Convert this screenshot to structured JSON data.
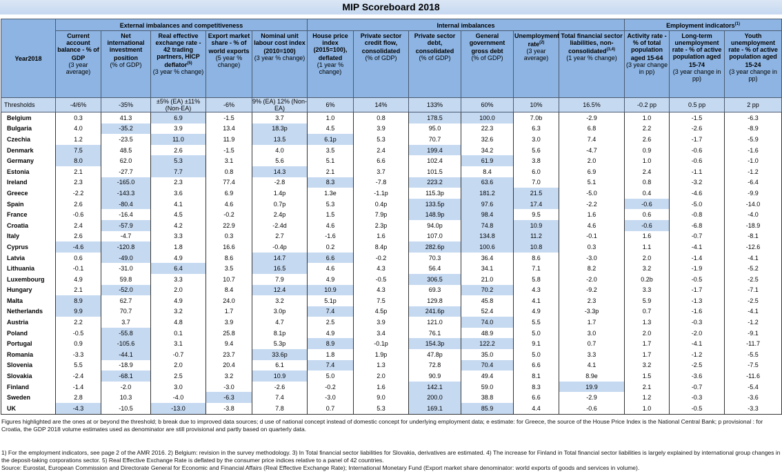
{
  "title": "MIP Scoreboard 2018",
  "year_label": "Year2018",
  "groups": [
    {
      "label": "External imbalances and competitiveness",
      "sup": ""
    },
    {
      "label": "Internal imbalances",
      "sup": ""
    },
    {
      "label": "Employment indicators",
      "sup": "(1)"
    }
  ],
  "columns": [
    {
      "title": "Current account balance - % of GDP",
      "sup": "",
      "sub": "(3 year average)"
    },
    {
      "title": "Net international investment position",
      "sup": "",
      "sub": "(% of GDP)"
    },
    {
      "title": "Real effective exchange rate - 42 trading partners, HICP deflator",
      "sup": "(5)",
      "sub": "(3 year % change)"
    },
    {
      "title": "Export market share - % of world exports",
      "sup": "",
      "sub": "(5 year % change)"
    },
    {
      "title": "Nominal unit labour cost index (2010=100)",
      "sup": "",
      "sub": "(3 year % change)"
    },
    {
      "title": "House price index (2015=100), deflated",
      "sup": "",
      "sub": "(1 year % change)"
    },
    {
      "title": "Private sector credit flow, consolidated",
      "sup": "",
      "sub": "(% of GDP)"
    },
    {
      "title": "Private sector debt, consolidated",
      "sup": "",
      "sub": "(% of GDP)"
    },
    {
      "title": "General government gross debt",
      "sup": "",
      "sub": "(% of GDP)"
    },
    {
      "title": "Unemployment rate",
      "sup": "(2)",
      "sub": "(3 year average)"
    },
    {
      "title": "Total financial sector liabilities, non-consolidated",
      "sup": "(3,4)",
      "sub": "(1 year % change)"
    },
    {
      "title": "Activity rate - % of total population aged 15-64",
      "sup": "",
      "sub": "(3 year change in pp)"
    },
    {
      "title": "Long-term unemployment rate - % of active population aged 15-74",
      "sup": "",
      "sub": "(3 year change in pp)"
    },
    {
      "title": "Youth unemployment rate - % of active population aged 15-24",
      "sup": "",
      "sub": "(3 year change in pp)"
    }
  ],
  "thresholds_label": "Thresholds",
  "thresholds": [
    "-4/6%",
    "-35%",
    "±5% (EA) ±11% (Non-EA)",
    "-6%",
    "9% (EA) 12% (Non-EA)",
    "6%",
    "14%",
    "133%",
    "60%",
    "10%",
    "16.5%",
    "-0.2 pp",
    "0.5 pp",
    "2 pp"
  ],
  "highlight_color": "#c5d9f1",
  "rows": [
    {
      "country": "Belgium",
      "values": [
        "0.3",
        "41.3",
        "6.9",
        "-1.5",
        "3.7",
        "1.0",
        "0.8",
        "178.5",
        "100.0",
        "7.0b",
        "-2.9",
        "1.0",
        "-1.5",
        "-6.3"
      ],
      "highlighted": [
        2,
        7,
        8
      ]
    },
    {
      "country": "Bulgaria",
      "values": [
        "4.0",
        "-35.2",
        "3.9",
        "13.4",
        "18.3p",
        "4.5",
        "3.9",
        "95.0",
        "22.3",
        "6.3",
        "6.8",
        "2.2",
        "-2.6",
        "-8.9"
      ],
      "highlighted": [
        1,
        4
      ]
    },
    {
      "country": "Czechia",
      "values": [
        "1.2",
        "-23.5",
        "11.0",
        "11.9",
        "13.5",
        "6.1p",
        "5.3",
        "70.7",
        "32.6",
        "3.0",
        "7.4",
        "2.6",
        "-1.7",
        "-5.9"
      ],
      "highlighted": [
        2,
        4,
        5
      ]
    },
    {
      "country": "Denmark",
      "values": [
        "7.5",
        "48.5",
        "2.6",
        "-1.5",
        "4.0",
        "3.5",
        "2.4",
        "199.4",
        "34.2",
        "5.6",
        "-4.7",
        "0.9",
        "-0.6",
        "-1.6"
      ],
      "highlighted": [
        0,
        7
      ]
    },
    {
      "country": "Germany",
      "values": [
        "8.0",
        "62.0",
        "5.3",
        "3.1",
        "5.6",
        "5.1",
        "6.6",
        "102.4",
        "61.9",
        "3.8",
        "2.0",
        "1.0",
        "-0.6",
        "-1.0"
      ],
      "highlighted": [
        0,
        2,
        8
      ]
    },
    {
      "country": "Estonia",
      "values": [
        "2.1",
        "-27.7",
        "7.7",
        "0.8",
        "14.3",
        "2.1",
        "3.7",
        "101.5",
        "8.4",
        "6.0",
        "6.9",
        "2.4",
        "-1.1",
        "-1.2"
      ],
      "highlighted": [
        2,
        4
      ]
    },
    {
      "country": "Ireland",
      "values": [
        "2.3",
        "-165.0",
        "2.3",
        "77.4",
        "-2.8",
        "8.3",
        "-7.8",
        "223.2",
        "63.6",
        "7.0",
        "5.1",
        "0.8",
        "-3.2",
        "-6.4"
      ],
      "highlighted": [
        1,
        5,
        7,
        8
      ]
    },
    {
      "country": "Greece",
      "values": [
        "-2.2",
        "-143.3",
        "3.6",
        "6.9",
        "1.4p",
        "1.3e",
        "-1.1p",
        "115.3p",
        "181.2",
        "21.5",
        "-5.0",
        "0.4",
        "-4.6",
        "-9.9"
      ],
      "highlighted": [
        1,
        8,
        9
      ]
    },
    {
      "country": "Spain",
      "values": [
        "2.6",
        "-80.4",
        "4.1",
        "4.6",
        "0.7p",
        "5.3",
        "0.4p",
        "133.5p",
        "97.6",
        "17.4",
        "-2.2",
        "-0.6",
        "-5.0",
        "-14.0"
      ],
      "highlighted": [
        1,
        7,
        8,
        9,
        11
      ]
    },
    {
      "country": "France",
      "values": [
        "-0.6",
        "-16.4",
        "4.5",
        "-0.2",
        "2.4p",
        "1.5",
        "7.9p",
        "148.9p",
        "98.4",
        "9.5",
        "1.6",
        "0.6",
        "-0.8",
        "-4.0"
      ],
      "highlighted": [
        7,
        8
      ]
    },
    {
      "country": "Croatia",
      "values": [
        "2.4",
        "-57.9",
        "4.2",
        "22.9",
        "-2.4d",
        "4.6",
        "2.3p",
        "94.0p",
        "74.8",
        "10.9",
        "4.6",
        "-0.6",
        "-6.8",
        "-18.9"
      ],
      "highlighted": [
        1,
        8,
        9,
        11
      ]
    },
    {
      "country": "Italy",
      "values": [
        "2.6",
        "-4.7",
        "3.3",
        "0.3",
        "2.7",
        "-1.6",
        "1.6",
        "107.0",
        "134.8",
        "11.2",
        "-0.1",
        "1.6",
        "-0.7",
        "-8.1"
      ],
      "highlighted": [
        8,
        9
      ]
    },
    {
      "country": "Cyprus",
      "values": [
        "-4.6",
        "-120.8",
        "1.8",
        "16.6",
        "-0.4p",
        "0.2",
        "8.4p",
        "282.6p",
        "100.6",
        "10.8",
        "0.3",
        "1.1",
        "-4.1",
        "-12.6"
      ],
      "highlighted": [
        0,
        1,
        7,
        8,
        9
      ]
    },
    {
      "country": "Latvia",
      "values": [
        "0.6",
        "-49.0",
        "4.9",
        "8.6",
        "14.7",
        "6.6",
        "-0.2",
        "70.3",
        "36.4",
        "8.6",
        "-3.0",
        "2.0",
        "-1.4",
        "-4.1"
      ],
      "highlighted": [
        1,
        4,
        5
      ]
    },
    {
      "country": "Lithuania",
      "values": [
        "-0.1",
        "-31.0",
        "6.4",
        "3.5",
        "16.5",
        "4.6",
        "4.3",
        "56.4",
        "34.1",
        "7.1",
        "8.2",
        "3.2",
        "-1.9",
        "-5.2"
      ],
      "highlighted": [
        2,
        4
      ]
    },
    {
      "country": "Luxembourg",
      "values": [
        "4.9",
        "59.8",
        "3.3",
        "10.7",
        "7.9",
        "4.9",
        "-0.5",
        "306.5",
        "21.0",
        "5.8",
        "-2.0",
        "0.2b",
        "-0.5",
        "-2.5"
      ],
      "highlighted": [
        7
      ]
    },
    {
      "country": "Hungary",
      "values": [
        "2.1",
        "-52.0",
        "2.0",
        "8.4",
        "12.4",
        "10.9",
        "4.3",
        "69.3",
        "70.2",
        "4.3",
        "-9.2",
        "3.3",
        "-1.7",
        "-7.1"
      ],
      "highlighted": [
        1,
        4,
        5,
        8
      ]
    },
    {
      "country": "Malta",
      "values": [
        "8.9",
        "62.7",
        "4.9",
        "24.0",
        "3.2",
        "5.1p",
        "7.5",
        "129.8",
        "45.8",
        "4.1",
        "2.3",
        "5.9",
        "-1.3",
        "-2.5"
      ],
      "highlighted": [
        0
      ]
    },
    {
      "country": "Netherlands",
      "values": [
        "9.9",
        "70.7",
        "3.2",
        "1.7",
        "3.0p",
        "7.4",
        "4.5p",
        "241.6p",
        "52.4",
        "4.9",
        "-3.3p",
        "0.7",
        "-1.6",
        "-4.1"
      ],
      "highlighted": [
        0,
        5,
        7
      ]
    },
    {
      "country": "Austria",
      "values": [
        "2.2",
        "3.7",
        "4.8",
        "3.9",
        "4.7",
        "2.5",
        "3.9",
        "121.0",
        "74.0",
        "5.5",
        "1.7",
        "1.3",
        "-0.3",
        "-1.2"
      ],
      "highlighted": [
        8
      ]
    },
    {
      "country": "Poland",
      "values": [
        "-0.5",
        "-55.8",
        "0.1",
        "25.8",
        "8.1p",
        "4.9",
        "3.4",
        "76.1",
        "48.9",
        "5.0",
        "3.0",
        "2.0",
        "-2.0",
        "-9.1"
      ],
      "highlighted": [
        1
      ]
    },
    {
      "country": "Portugal",
      "values": [
        "0.9",
        "-105.6",
        "3.1",
        "9.4",
        "5.3p",
        "8.9",
        "-0.1p",
        "154.3p",
        "122.2",
        "9.1",
        "0.7",
        "1.7",
        "-4.1",
        "-11.7"
      ],
      "highlighted": [
        1,
        5,
        7,
        8
      ]
    },
    {
      "country": "Romania",
      "values": [
        "-3.3",
        "-44.1",
        "-0.7",
        "23.7",
        "33.6p",
        "1.8",
        "1.9p",
        "47.8p",
        "35.0",
        "5.0",
        "3.3",
        "1.7",
        "-1.2",
        "-5.5"
      ],
      "highlighted": [
        1,
        4
      ]
    },
    {
      "country": "Slovenia",
      "values": [
        "5.5",
        "-18.9",
        "2.0",
        "20.4",
        "6.1",
        "7.4",
        "1.3",
        "72.8",
        "70.4",
        "6.6",
        "4.1",
        "3.2",
        "-2.5",
        "-7.5"
      ],
      "highlighted": [
        5,
        8
      ]
    },
    {
      "country": "Slovakia",
      "values": [
        "-2.4",
        "-68.1",
        "2.5",
        "3.2",
        "10.9",
        "5.0",
        "2.0",
        "90.9",
        "49.4",
        "8.1",
        "8.9e",
        "1.5",
        "-3.6",
        "-11.6"
      ],
      "highlighted": [
        1,
        4
      ]
    },
    {
      "country": "Finland",
      "values": [
        "-1.4",
        "-2.0",
        "3.0",
        "-3.0",
        "-2.6",
        "-0.2",
        "1.6",
        "142.1",
        "59.0",
        "8.3",
        "19.9",
        "2.1",
        "-0.7",
        "-5.4"
      ],
      "highlighted": [
        7,
        10
      ]
    },
    {
      "country": "Sweden",
      "values": [
        "2.8",
        "10.3",
        "-4.0",
        "-6.3",
        "7.4",
        "-3.0",
        "9.0",
        "200.0",
        "38.8",
        "6.6",
        "-2.9",
        "1.2",
        "-0.3",
        "-3.6"
      ],
      "highlighted": [
        3,
        7
      ]
    },
    {
      "country": "UK",
      "values": [
        "-4.3",
        "-10.5",
        "-13.0",
        "-3.8",
        "7.8",
        "0.7",
        "5.3",
        "169.1",
        "85.9",
        "4.4",
        "-0.6",
        "1.0",
        "-0.5",
        "-3.3"
      ],
      "highlighted": [
        0,
        2,
        7,
        8
      ]
    }
  ],
  "notes": {
    "legend": "Figures highlighted are the ones at or beyond the threshold; b break due to improved data sources; d use of national concept instead of domestic concept for underlying employment data;  e estimate: for Greece, the source of the House Price Index is the National Central Bank; p provisional : for Croatia, the GDP 2018 volume estimates used as denominator are still provisional and partly based on quarterly data.",
    "footnotes": "1) For the employment indicators, see page 2 of the AMR 2016. 2) Belgium: revision in the survey methodology. 3) In Total financial sector liabilities for Slovakia, derivatives are estimated. 4) The increase for Finland in Total financial sector liabilities is largely explained by international group changes in the deposit-taking corporations sector. 5) Real Effective Exchange Rate is deflated by the consumer price indices relative to a panel of 42 countries.",
    "source": "Source: Eurostat, European Commission and Directorate General for Economic and Financial Affairs (Real Effective Exchange Rate); International Monetary Fund (Export market share denominator: world exports of goods and services in volume)."
  }
}
